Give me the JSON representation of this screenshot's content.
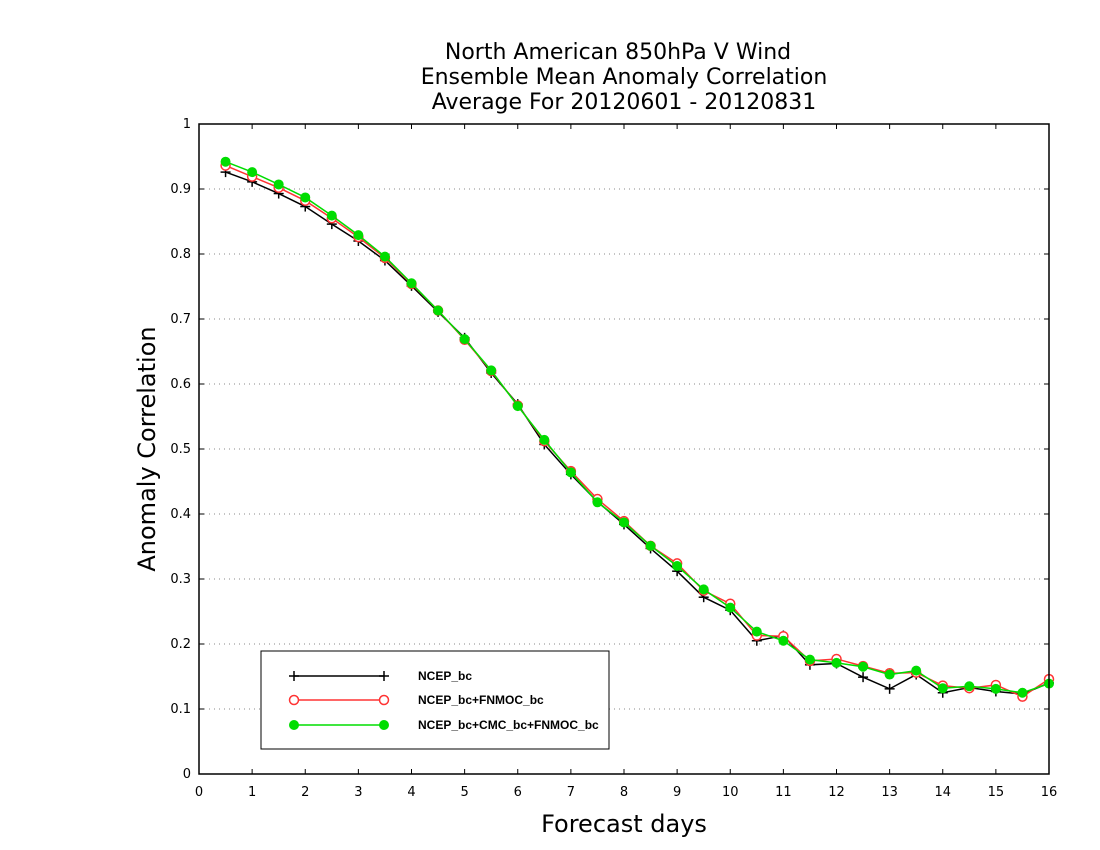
{
  "chart_data": {
    "type": "line",
    "title_lines": [
      "North American 850hPa V Wind",
      "Ensemble Mean Anomaly Correlation",
      "Average For 20120601 - 20120831"
    ],
    "xlabel": "Forecast days",
    "ylabel": "Anomaly Correlation",
    "xlim": [
      0,
      16
    ],
    "ylim": [
      0,
      1
    ],
    "x_ticks": [
      "0",
      "1",
      "2",
      "3",
      "4",
      "5",
      "6",
      "7",
      "8",
      "9",
      "10",
      "11",
      "12",
      "13",
      "14",
      "15",
      "16"
    ],
    "y_ticks": [
      "0",
      "0.1",
      "0.2",
      "0.3",
      "0.4",
      "0.5",
      "0.6",
      "0.7",
      "0.8",
      "0.9",
      "1"
    ],
    "grid": "horizontal-dotted",
    "legend_position": "bottom-left",
    "x": [
      0.5,
      1,
      1.5,
      2,
      2.5,
      3,
      3.5,
      4,
      4.5,
      5,
      5.5,
      6,
      6.5,
      7,
      7.5,
      8,
      8.5,
      9,
      9.5,
      10,
      10.5,
      11,
      11.5,
      12,
      12.5,
      13,
      13.5,
      14,
      14.5,
      15,
      15.5,
      16
    ],
    "series": [
      {
        "name": "NCEP_bc",
        "color": "#000000",
        "marker": "plus",
        "values": [
          0.926,
          0.911,
          0.893,
          0.873,
          0.846,
          0.82,
          0.79,
          0.751,
          0.711,
          0.671,
          0.617,
          0.569,
          0.507,
          0.461,
          0.419,
          0.384,
          0.347,
          0.312,
          0.272,
          0.252,
          0.205,
          0.213,
          0.168,
          0.17,
          0.149,
          0.131,
          0.153,
          0.125,
          0.133,
          0.127,
          0.123,
          0.14
        ]
      },
      {
        "name": "NCEP_bc+FNMOC_bc",
        "color": "#ff3333",
        "marker": "open-circle",
        "values": [
          0.936,
          0.919,
          0.902,
          0.882,
          0.855,
          0.826,
          0.794,
          0.754,
          0.713,
          0.668,
          0.62,
          0.567,
          0.512,
          0.466,
          0.423,
          0.389,
          0.351,
          0.324,
          0.282,
          0.262,
          0.213,
          0.212,
          0.174,
          0.177,
          0.166,
          0.155,
          0.156,
          0.136,
          0.132,
          0.137,
          0.119,
          0.146
        ]
      },
      {
        "name": "NCEP_bc+CMC_bc+FNMOC_bc",
        "color": "#00dd00",
        "marker": "filled-circle",
        "values": [
          0.942,
          0.926,
          0.907,
          0.887,
          0.859,
          0.829,
          0.796,
          0.755,
          0.713,
          0.669,
          0.621,
          0.566,
          0.514,
          0.464,
          0.418,
          0.387,
          0.351,
          0.32,
          0.284,
          0.256,
          0.219,
          0.205,
          0.176,
          0.171,
          0.165,
          0.153,
          0.159,
          0.132,
          0.135,
          0.131,
          0.125,
          0.139
        ]
      }
    ]
  }
}
